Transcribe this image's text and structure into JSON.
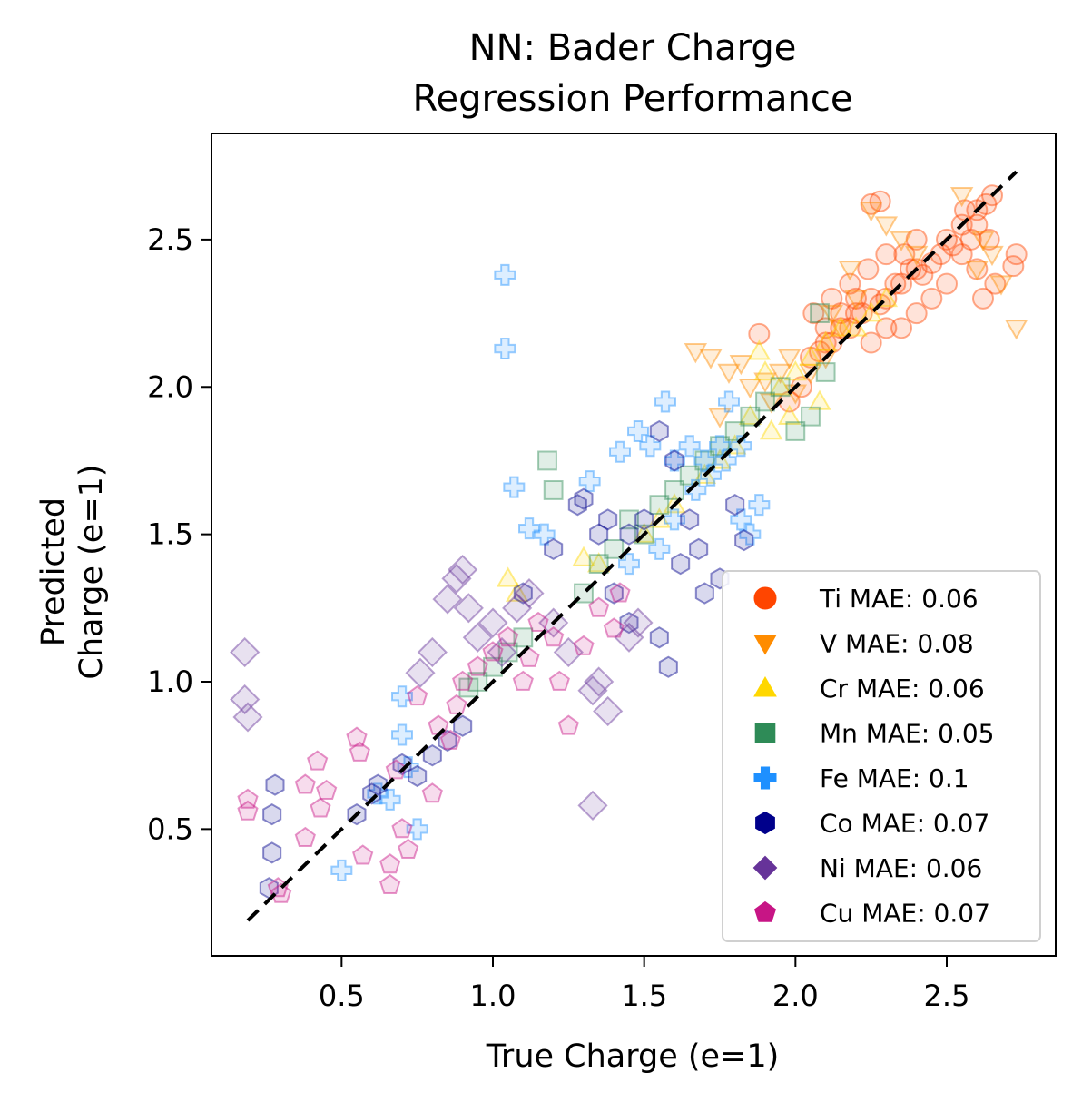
{
  "chart_data": {
    "type": "scatter",
    "title_line1": "NN: Bader Charge",
    "title_line2": "Regression Performance",
    "xlabel": "True Charge (e=1)",
    "ylabel_line1": "Predicted",
    "ylabel_line2": "Charge (e=1)",
    "xlim": [
      0.07,
      2.86
    ],
    "ylim": [
      0.07,
      2.86
    ],
    "xticks": [
      0.5,
      1.0,
      1.5,
      2.0,
      2.5
    ],
    "yticks": [
      0.5,
      1.0,
      1.5,
      2.0,
      2.5
    ],
    "xtick_labels": [
      "0.5",
      "1.0",
      "1.5",
      "2.0",
      "2.5"
    ],
    "ytick_labels": [
      "0.5",
      "1.0",
      "1.5",
      "2.0",
      "2.5"
    ],
    "grid": false,
    "legend_position": "lower-right",
    "identity_line": {
      "x": [
        0.19,
        2.73
      ],
      "y": [
        0.19,
        2.73
      ],
      "style": "dashed",
      "color": "#000000"
    },
    "series": [
      {
        "name": "Ti MAE: 0.06",
        "color": "#ff4500",
        "marker": "circle",
        "x": [
          2.05,
          2.1,
          2.15,
          2.2,
          2.25,
          2.3,
          2.35,
          2.4,
          2.45,
          2.5,
          2.55,
          2.6,
          2.63,
          2.65,
          2.58,
          2.52,
          2.48,
          2.42,
          2.38,
          2.33,
          2.28,
          2.22,
          2.18,
          2.12,
          2.08,
          2.62,
          2.66,
          2.6,
          2.55,
          2.5,
          2.45,
          2.4,
          2.35,
          2.3,
          2.25,
          2.2,
          2.15,
          2.1,
          2.02,
          1.98,
          1.88,
          2.25,
          2.28,
          2.73,
          2.72,
          2.64,
          2.6,
          2.56,
          2.4,
          2.36,
          2.3,
          2.24,
          2.18,
          2.12,
          2.06
        ],
        "y": [
          2.1,
          2.15,
          2.2,
          2.25,
          2.3,
          2.3,
          2.35,
          2.4,
          2.42,
          2.5,
          2.55,
          2.6,
          2.62,
          2.65,
          2.5,
          2.48,
          2.45,
          2.38,
          2.4,
          2.35,
          2.28,
          2.25,
          2.2,
          2.15,
          2.12,
          2.3,
          2.35,
          2.4,
          2.45,
          2.35,
          2.3,
          2.25,
          2.2,
          2.2,
          2.15,
          2.3,
          2.25,
          2.2,
          2.0,
          1.95,
          2.18,
          2.62,
          2.63,
          2.45,
          2.41,
          2.5,
          2.55,
          2.6,
          2.5,
          2.45,
          2.45,
          2.4,
          2.35,
          2.3,
          2.25
        ]
      },
      {
        "name": "V MAE: 0.08",
        "color": "#ff8c00",
        "marker": "triangle-down",
        "x": [
          1.67,
          1.72,
          1.78,
          1.82,
          1.85,
          1.9,
          1.95,
          2.0,
          2.05,
          2.1,
          2.15,
          2.2,
          2.3,
          2.35,
          2.4,
          2.55,
          2.62,
          2.68,
          2.73,
          2.65,
          2.6,
          2.25,
          2.18,
          2.12,
          1.98,
          1.92,
          1.75
        ],
        "y": [
          2.12,
          2.1,
          2.05,
          2.08,
          2.0,
          2.02,
          2.05,
          1.98,
          2.05,
          2.1,
          2.2,
          2.3,
          2.55,
          2.5,
          2.45,
          2.65,
          2.5,
          2.35,
          2.2,
          2.45,
          2.4,
          2.6,
          2.4,
          2.25,
          2.1,
          1.95,
          1.9
        ]
      },
      {
        "name": "Cr MAE: 0.06",
        "color": "#ffd700",
        "marker": "triangle-up",
        "x": [
          1.05,
          1.08,
          1.3,
          1.35,
          1.5,
          1.55,
          1.6,
          1.7,
          1.75,
          1.8,
          1.85,
          1.88,
          1.9,
          1.95,
          2.0,
          2.05,
          2.1,
          2.15,
          2.2,
          2.25,
          2.3,
          1.92,
          2.08,
          1.98
        ],
        "y": [
          1.35,
          1.3,
          1.42,
          1.4,
          1.5,
          1.55,
          1.6,
          1.7,
          1.75,
          1.8,
          1.9,
          2.12,
          2.05,
          2.0,
          2.05,
          2.1,
          2.15,
          2.2,
          2.2,
          2.25,
          2.3,
          1.85,
          1.95,
          1.9
        ]
      },
      {
        "name": "Mn MAE: 0.05",
        "color": "#2e8b57",
        "marker": "square",
        "x": [
          0.92,
          0.95,
          1.0,
          1.05,
          1.1,
          1.18,
          1.2,
          1.3,
          1.35,
          1.4,
          1.45,
          1.5,
          1.55,
          1.6,
          1.65,
          1.7,
          1.75,
          1.8,
          1.85,
          1.9,
          1.95,
          2.0,
          2.05,
          2.08,
          2.1
        ],
        "y": [
          0.98,
          1.0,
          1.05,
          1.1,
          1.15,
          1.75,
          1.65,
          1.3,
          1.4,
          1.45,
          1.55,
          1.5,
          1.6,
          1.65,
          1.7,
          1.75,
          1.8,
          1.85,
          1.9,
          1.95,
          2.0,
          1.85,
          1.9,
          2.25,
          2.05
        ]
      },
      {
        "name": "Fe MAE: 0.1",
        "color": "#1e90ff",
        "marker": "plus",
        "x": [
          1.04,
          1.04,
          1.07,
          1.12,
          1.17,
          1.32,
          1.42,
          1.48,
          1.52,
          1.57,
          1.6,
          1.65,
          1.7,
          1.75,
          1.78,
          1.82,
          1.85,
          1.88,
          0.7,
          0.7,
          0.72,
          0.62,
          0.66,
          0.75,
          0.5,
          1.6,
          1.67,
          1.72,
          1.77,
          1.82,
          1.45,
          1.55
        ],
        "y": [
          2.38,
          2.13,
          1.66,
          1.52,
          1.5,
          1.68,
          1.78,
          1.85,
          1.8,
          1.95,
          1.75,
          1.8,
          1.75,
          1.8,
          1.95,
          1.55,
          1.5,
          1.6,
          0.82,
          0.95,
          0.71,
          0.62,
          0.6,
          0.5,
          0.36,
          1.55,
          1.65,
          1.7,
          1.75,
          1.8,
          1.4,
          1.45
        ]
      },
      {
        "name": "Co MAE: 0.07",
        "color": "#00008b",
        "marker": "hexagon",
        "x": [
          0.26,
          0.27,
          0.27,
          0.28,
          0.55,
          0.6,
          0.62,
          0.7,
          0.75,
          0.8,
          0.85,
          0.9,
          1.1,
          1.2,
          1.28,
          1.35,
          1.45,
          1.5,
          1.55,
          1.6,
          1.65,
          1.7,
          1.75,
          1.8,
          1.83,
          1.55,
          1.58,
          1.62,
          1.68,
          1.3,
          1.38,
          1.4,
          1.45
        ],
        "y": [
          0.3,
          0.42,
          0.55,
          0.65,
          0.55,
          0.62,
          0.65,
          0.72,
          0.68,
          0.75,
          0.8,
          0.85,
          1.3,
          1.45,
          1.6,
          1.5,
          1.5,
          1.55,
          1.85,
          1.75,
          1.55,
          1.3,
          1.35,
          1.6,
          1.48,
          1.15,
          1.05,
          1.4,
          1.45,
          1.62,
          1.55,
          1.3,
          1.2
        ]
      },
      {
        "name": "Ni MAE: 0.06",
        "color": "#663399",
        "marker": "diamond",
        "x": [
          0.18,
          0.18,
          0.19,
          0.76,
          0.8,
          0.85,
          0.88,
          0.9,
          0.92,
          0.95,
          1.0,
          1.03,
          1.08,
          1.12,
          1.2,
          1.25,
          1.33,
          1.33,
          1.35,
          1.38,
          1.45,
          1.48
        ],
        "y": [
          1.1,
          0.94,
          0.88,
          1.03,
          1.1,
          1.28,
          1.35,
          1.38,
          1.25,
          1.15,
          1.2,
          1.1,
          1.25,
          1.3,
          1.2,
          1.1,
          0.58,
          0.97,
          1.0,
          0.9,
          1.15,
          1.2
        ],
        "size_scale": 1.2
      },
      {
        "name": "Cu MAE: 0.07",
        "color": "#c71585",
        "marker": "pentagon",
        "x": [
          0.19,
          0.19,
          0.29,
          0.3,
          0.38,
          0.38,
          0.42,
          0.43,
          0.45,
          0.55,
          0.56,
          0.57,
          0.66,
          0.66,
          0.68,
          0.7,
          0.72,
          0.75,
          0.8,
          0.82,
          0.86,
          0.88,
          0.9,
          0.95,
          1.0,
          1.05,
          1.1,
          1.12,
          1.15,
          1.2,
          1.22,
          1.25,
          1.3,
          1.35,
          1.4,
          1.42
        ],
        "y": [
          0.6,
          0.56,
          0.3,
          0.28,
          0.65,
          0.47,
          0.73,
          0.57,
          0.63,
          0.81,
          0.76,
          0.41,
          0.31,
          0.38,
          0.7,
          0.5,
          0.43,
          0.95,
          0.62,
          0.85,
          0.8,
          0.92,
          1.0,
          1.05,
          1.1,
          1.15,
          1.0,
          1.08,
          1.2,
          1.15,
          1.0,
          0.85,
          1.12,
          1.25,
          1.18,
          1.3
        ]
      }
    ]
  }
}
